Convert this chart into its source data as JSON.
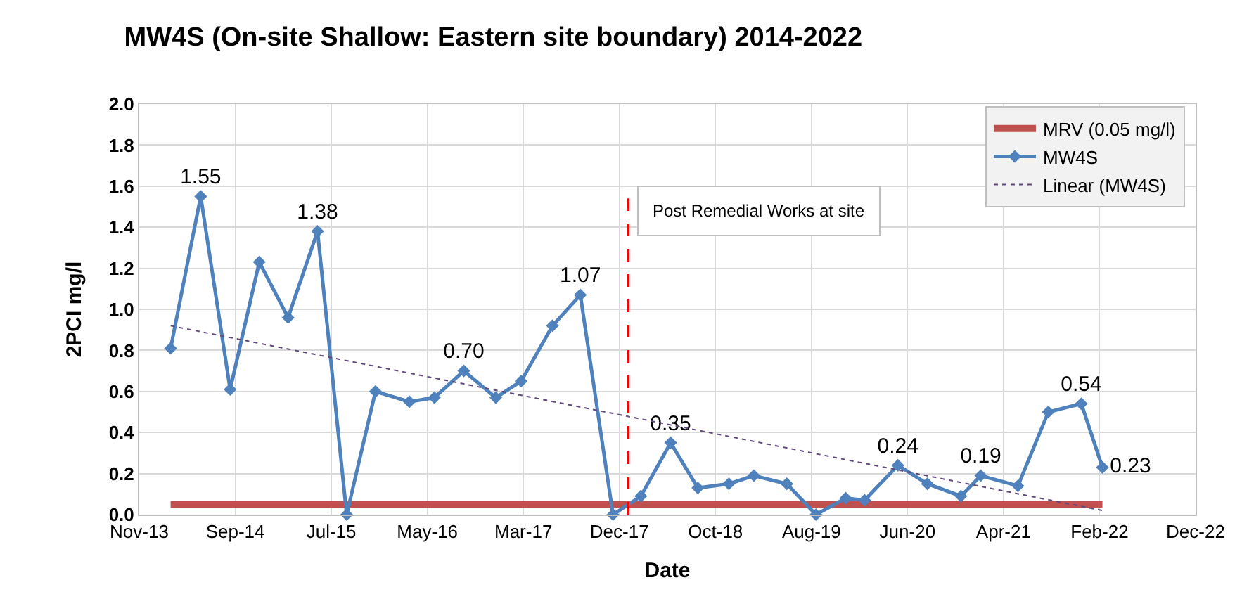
{
  "chart_data": {
    "type": "line",
    "title": "MW4S (On-site Shallow: Eastern site boundary) 2014-2022",
    "xlabel": "Date",
    "ylabel": "2PCI mg/l",
    "series": [
      {
        "name": "MRV (0.05 mg/l)",
        "color": "#c0504d",
        "marker": "none",
        "x": [
          "2014-02-26",
          "2022-02-15"
        ],
        "values": [
          0.05,
          0.05
        ]
      },
      {
        "name": "MW4S",
        "color": "#4f81bd",
        "marker": "diamond",
        "x": [
          "2014-02-26",
          "2014-05-31",
          "2014-08-31",
          "2014-11-30",
          "2015-02-28",
          "2015-05-31",
          "2015-08-30",
          "2015-11-28",
          "2016-03-13",
          "2016-05-30",
          "2016-08-30",
          "2016-12-08",
          "2017-02-25",
          "2017-06-03",
          "2017-08-29",
          "2017-12-09",
          "2018-03-06",
          "2018-06-07",
          "2018-08-31",
          "2018-12-06",
          "2019-02-22",
          "2019-06-05",
          "2019-09-04",
          "2019-12-06",
          "2020-02-03",
          "2020-05-17",
          "2020-08-17",
          "2020-11-30",
          "2021-01-31",
          "2021-05-27",
          "2021-08-30",
          "2021-12-11",
          "2022-02-15"
        ],
        "values": [
          0.81,
          1.55,
          0.61,
          1.23,
          0.96,
          1.38,
          0,
          0.6,
          0.55,
          0.57,
          0.7,
          0.57,
          0.65,
          0.92,
          1.07,
          0,
          0.09,
          0.35,
          0.13,
          0.15,
          0.19,
          0.15,
          0,
          0.08,
          0.07,
          0.24,
          0.15,
          0.09,
          0.19,
          0.14,
          0.5,
          0.54,
          0.23
        ],
        "value_labels": [
          null,
          "1.55",
          null,
          null,
          null,
          "1.38",
          null,
          null,
          null,
          null,
          "0.70",
          null,
          null,
          null,
          "1.07",
          null,
          null,
          "0.35",
          null,
          null,
          null,
          null,
          null,
          null,
          null,
          "0.24",
          null,
          null,
          "0.19",
          null,
          null,
          "0.54",
          "0.23"
        ]
      },
      {
        "name": "Linear (MW4S)",
        "color": "#604a7b",
        "marker": "none",
        "line_style": "dotted",
        "x": [
          "2014-02-26",
          "2022-02-15"
        ],
        "values": [
          0.92,
          0.02
        ]
      }
    ],
    "ref_lines": [
      {
        "axis": "x",
        "value": "2018-01-26",
        "label": "Post Remedial Works at site",
        "color": "#ff0000",
        "line_style": "dashed"
      }
    ],
    "xlim": [
      "2013-11-20",
      "2022-12-03"
    ],
    "xticks": [
      {
        "value": "2013-11-20",
        "label": "Nov-13"
      },
      {
        "value": "2014-09-16",
        "label": "Sep-14"
      },
      {
        "value": "2015-07-13",
        "label": "Jul-15"
      },
      {
        "value": "2016-05-08",
        "label": "May-16"
      },
      {
        "value": "2017-03-04",
        "label": "Mar-17"
      },
      {
        "value": "2017-12-29",
        "label": "Dec-17"
      },
      {
        "value": "2018-10-25",
        "label": "Oct-18"
      },
      {
        "value": "2019-08-21",
        "label": "Aug-19"
      },
      {
        "value": "2020-06-16",
        "label": "Jun-20"
      },
      {
        "value": "2021-04-12",
        "label": "Apr-21"
      },
      {
        "value": "2022-02-06",
        "label": "Feb-22"
      },
      {
        "value": "2022-12-03",
        "label": "Dec-22"
      }
    ],
    "ylim": [
      0,
      2.0
    ],
    "yticks": [
      {
        "value": 0,
        "label": "0.0"
      },
      {
        "value": 0.2,
        "label": "0.2"
      },
      {
        "value": 0.4,
        "label": "0.4"
      },
      {
        "value": 0.6,
        "label": "0.6"
      },
      {
        "value": 0.8,
        "label": "0.8"
      },
      {
        "value": 1.0,
        "label": "1.0"
      },
      {
        "value": 1.2,
        "label": "1.2"
      },
      {
        "value": 1.4,
        "label": "1.4"
      },
      {
        "value": 1.6,
        "label": "1.6"
      },
      {
        "value": 1.8,
        "label": "1.8"
      },
      {
        "value": 2.0,
        "label": "2.0"
      }
    ],
    "grid": true,
    "legend": "top right"
  }
}
